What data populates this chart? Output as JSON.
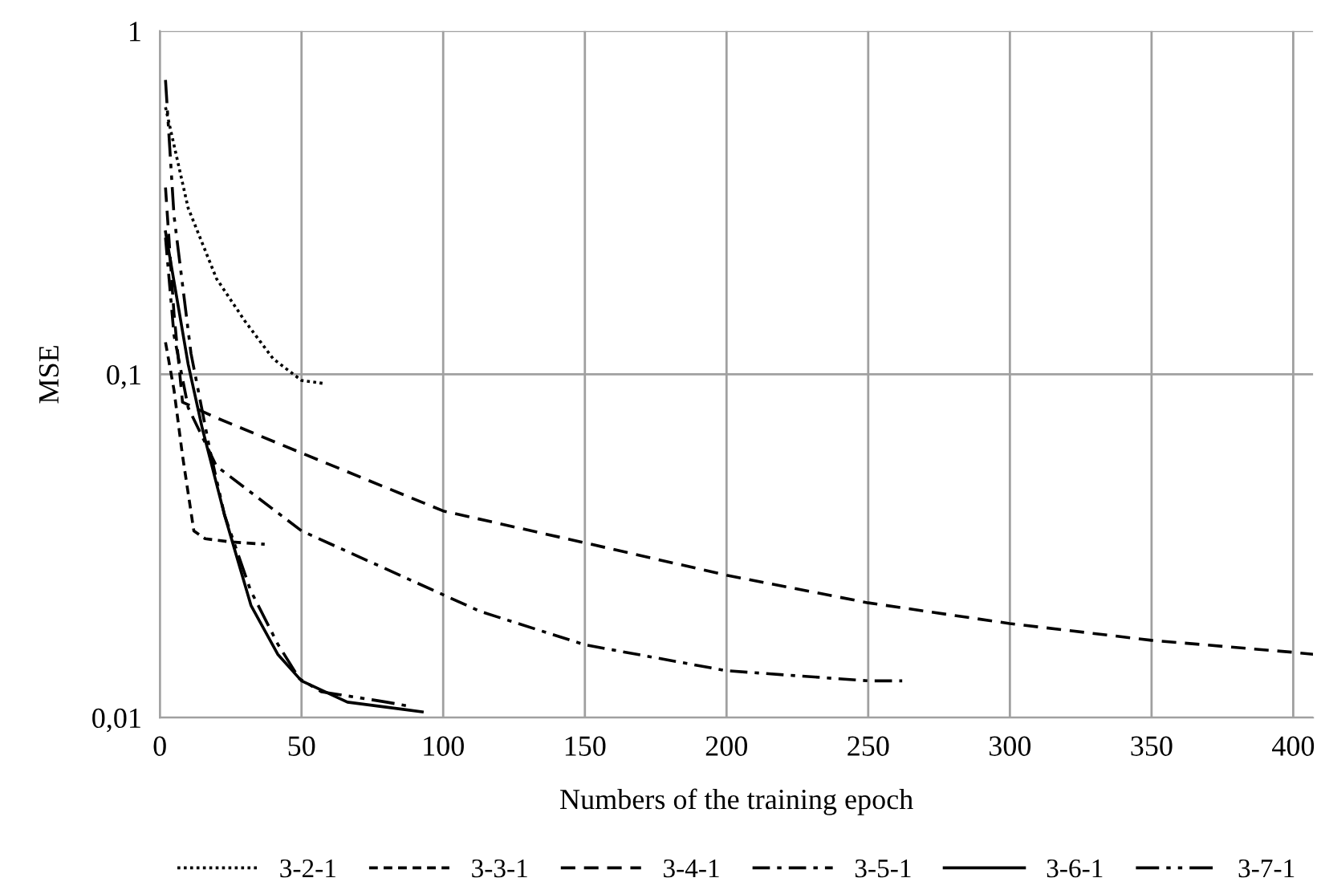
{
  "chart_data": {
    "type": "line",
    "xlabel": "Numbers of the training epoch",
    "ylabel": "MSE",
    "log": "y",
    "grid": true,
    "legend": "bottom",
    "marker": "none",
    "xlim": [
      0,
      407
    ],
    "xticks": [
      0,
      50,
      100,
      150,
      200,
      250,
      300,
      350,
      400
    ],
    "ylim": [
      0.01,
      1
    ],
    "yticks": [
      {
        "value": 0.01,
        "label": "0,01"
      },
      {
        "value": 0.1,
        "label": "0,1"
      },
      {
        "value": 1,
        "label": "1"
      }
    ],
    "series": [
      {
        "name": "3-2-1",
        "color": "#000000",
        "line_style": "dotted",
        "x": [
          2,
          10,
          20,
          30,
          40,
          50,
          58
        ],
        "values": [
          0.6,
          0.305,
          0.19,
          0.143,
          0.111,
          0.096,
          0.094
        ]
      },
      {
        "name": "3-3-1",
        "color": "#000000",
        "line_style": "dashed_short",
        "x": [
          2,
          5,
          8,
          12,
          16,
          25,
          37
        ],
        "values": [
          0.124,
          0.09,
          0.058,
          0.035,
          0.0332,
          0.0325,
          0.032
        ]
      },
      {
        "name": "3-4-1",
        "color": "#000000",
        "line_style": "dashed",
        "x": [
          2,
          5,
          8,
          15,
          20,
          50,
          100,
          150,
          200,
          250,
          300,
          350,
          400,
          407
        ],
        "values": [
          0.35,
          0.15,
          0.083,
          0.078,
          0.0747,
          0.059,
          0.04,
          0.0323,
          0.026,
          0.0216,
          0.0188,
          0.0168,
          0.0155,
          0.0153
        ]
      },
      {
        "name": "3-5-1",
        "color": "#000000",
        "line_style": "dashdot",
        "x": [
          2,
          5,
          10,
          20,
          50,
          113,
          150,
          200,
          250,
          262
        ],
        "values": [
          0.25,
          0.13,
          0.08,
          0.054,
          0.035,
          0.0204,
          0.0163,
          0.0137,
          0.0128,
          0.0128
        ]
      },
      {
        "name": "3-6-1",
        "color": "#000000",
        "line_style": "solid",
        "x": [
          2,
          10,
          15,
          22.8,
          32.2,
          41.6,
          50,
          66.2,
          92.6
        ],
        "values": [
          0.26,
          0.107,
          0.0695,
          0.039,
          0.0212,
          0.0153,
          0.0128,
          0.0111,
          0.0104
        ]
      },
      {
        "name": "3-7-1",
        "color": "#000000",
        "line_style": "dashdotdot",
        "x": [
          2,
          5,
          11,
          17.7,
          22.8,
          32,
          41.6,
          49.2,
          57,
          80,
          88
        ],
        "values": [
          0.72,
          0.29,
          0.115,
          0.06,
          0.039,
          0.0235,
          0.0164,
          0.013,
          0.0119,
          0.0111,
          0.0108
        ]
      }
    ]
  }
}
